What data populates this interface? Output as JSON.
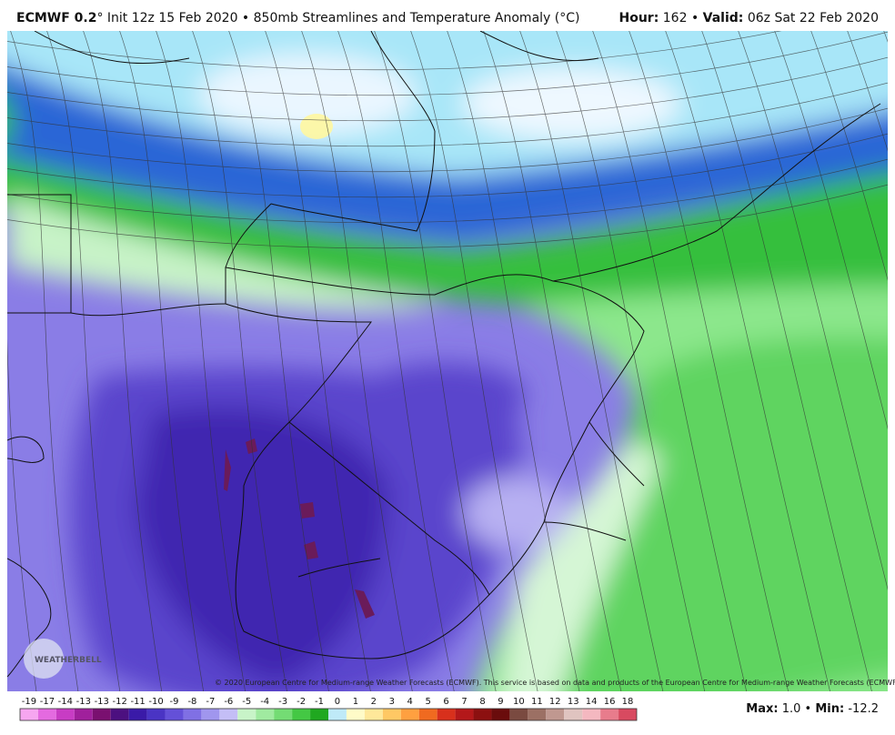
{
  "header": {
    "model": "ECMWF 0.2",
    "title": "° Init 12z 15 Feb 2020 • 850mb Streamlines and Temperature Anomaly (°C)",
    "hour_label": "Hour:",
    "hour": "162",
    "separator": "•",
    "valid_label": "Valid:",
    "valid": "06z Sat 22 Feb 2020"
  },
  "logo": "WEATHERBELL",
  "footer": {
    "copyright": "© 2020 European Centre for Medium-range Weather Forecasts (ECMWF). This service is based on data and products of the European Centre for Medium-range Weather Forecasts (ECMWF).",
    "max_label": "Max:",
    "max": "1.0",
    "separator": "•",
    "min_label": "Min:",
    "min": "-12.2"
  },
  "colorbar": {
    "labels": [
      "-19",
      "-17",
      "-14",
      "-13",
      "-13",
      "-12",
      "-11",
      "-10",
      "-9",
      "-8",
      "-7",
      "-6",
      "-5",
      "-4",
      "-3",
      "-2",
      "-1",
      "0",
      "1",
      "2",
      "3",
      "4",
      "5",
      "6",
      "7",
      "8",
      "9",
      "10",
      "11",
      "12",
      "13",
      "14",
      "16",
      "18"
    ],
    "colors": [
      "#f6a6f0",
      "#e46ae0",
      "#c83cc4",
      "#a0209c",
      "#7a1070",
      "#4c1080",
      "#3a1aa8",
      "#4a34c4",
      "#6450d8",
      "#8070e4",
      "#a096ee",
      "#c4bef6",
      "#c8f4c8",
      "#a0eaa0",
      "#74dc74",
      "#44c844",
      "#20a820",
      "#bfeaf8",
      "#fffbc8",
      "#ffe89a",
      "#ffc864",
      "#ffa040",
      "#f06a20",
      "#d8301c",
      "#b4181a",
      "#8c1010",
      "#6a0c0c",
      "#7a4a40",
      "#9c7064",
      "#c09890",
      "#e0c4c0",
      "#f4b8c0",
      "#e87c8c",
      "#d84a60"
    ]
  }
}
